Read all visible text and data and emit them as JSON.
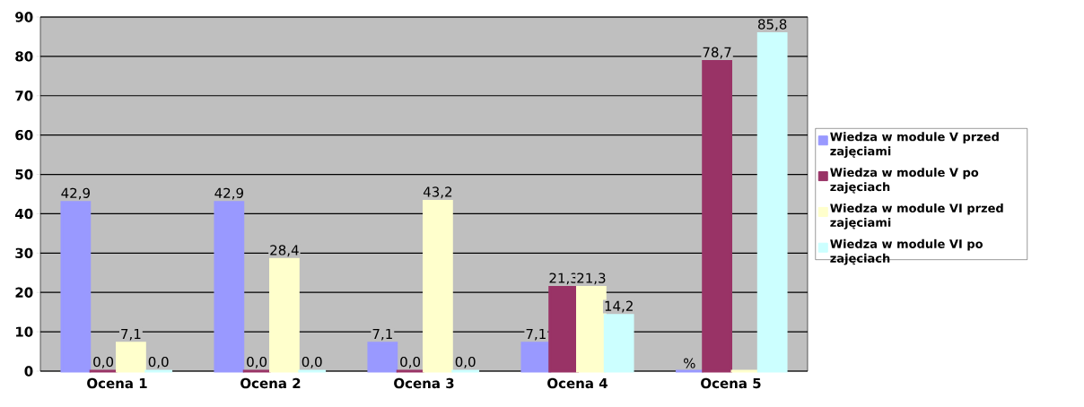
{
  "chart_data": {
    "type": "bar",
    "categories": [
      "Ocena 1",
      "Ocena 2",
      "Ocena 3",
      "Ocena 4",
      "Ocena 5"
    ],
    "series": [
      {
        "name": "Wiedza w module V przed zajęciami",
        "color": "#9999ff",
        "values": [
          42.9,
          42.9,
          7.1,
          7.1,
          0
        ],
        "value_labels": [
          "42,9",
          "42,9",
          "7,1",
          "7,1",
          "%"
        ]
      },
      {
        "name": "Wiedza w module V po zajęciach",
        "color": "#993366",
        "values": [
          0,
          0,
          0,
          21.3,
          78.7
        ],
        "value_labels": [
          "0,0",
          "0,0",
          "0,0",
          "21,3",
          "78,7"
        ]
      },
      {
        "name": "Wiedza w module VI przed zajęciami",
        "color": "#ffffcc",
        "values": [
          7.1,
          28.4,
          43.2,
          21.3,
          0
        ],
        "value_labels": [
          "7,1",
          "28,4",
          "43,2",
          "21,3",
          null
        ]
      },
      {
        "name": "Wiedza w module VI po zajęciach",
        "color": "#ccffff",
        "values": [
          0,
          0,
          0,
          14.2,
          85.8
        ],
        "value_labels": [
          "0,0",
          "0,0",
          "0,0",
          "14,2",
          "85,8"
        ]
      }
    ],
    "ylim": [
      0,
      90
    ],
    "yticks": [
      0,
      10,
      20,
      30,
      40,
      50,
      60,
      70,
      80,
      90
    ],
    "grid": "y",
    "legend": "right"
  }
}
